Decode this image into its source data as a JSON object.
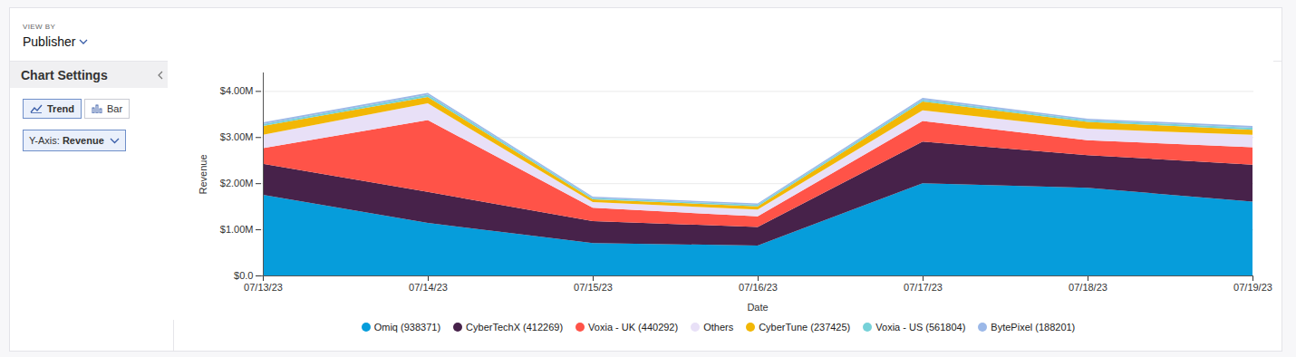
{
  "controls": {
    "view_by_label": "VIEW BY",
    "view_by": "Publisher",
    "panel_title": "Chart Settings",
    "chart_types": [
      "Trend",
      "Bar"
    ],
    "selected": "Trend",
    "y_axis_label": "Y-Axis:",
    "y_axis_value": "Revenue"
  },
  "chart_data": {
    "type": "area",
    "stacked": true,
    "grid": true,
    "legend": "bottom",
    "x_label": "Date",
    "y_label": "Revenue",
    "categories": [
      "07/13/23",
      "07/14/23",
      "07/15/23",
      "07/16/23",
      "07/17/23",
      "07/18/23",
      "07/19/23"
    ],
    "ylim": [
      0,
      4400000
    ],
    "yticks": [
      {
        "value": 0,
        "label": "$0.0"
      },
      {
        "value": 1000000,
        "label": "$1.00M"
      },
      {
        "value": 2000000,
        "label": "$2.00M"
      },
      {
        "value": 3000000,
        "label": "$3.00M"
      },
      {
        "value": 4000000,
        "label": "$4.00M"
      }
    ],
    "series": [
      {
        "name": "Omiq (938371)",
        "color": "#069ddb",
        "values": [
          1750000,
          1140000,
          700000,
          650000,
          2000000,
          1900000,
          1600000
        ]
      },
      {
        "name": "CyberTechX (412269)",
        "color": "#47224a",
        "values": [
          670000,
          670000,
          480000,
          400000,
          900000,
          710000,
          800000
        ]
      },
      {
        "name": "Voxia - UK (440292)",
        "color": "#ff5348",
        "values": [
          340000,
          1560000,
          290000,
          230000,
          450000,
          320000,
          380000
        ]
      },
      {
        "name": "Others",
        "color": "#e8e0f7",
        "values": [
          290000,
          360000,
          120000,
          150000,
          230000,
          250000,
          270000
        ]
      },
      {
        "name": "CyberTune (237425)",
        "color": "#f2b705",
        "values": [
          190000,
          140000,
          60000,
          70000,
          190000,
          150000,
          110000
        ]
      },
      {
        "name": "Voxia - US (561804)",
        "color": "#76d1d8",
        "values": [
          40000,
          50000,
          30000,
          30000,
          40000,
          40000,
          40000
        ]
      },
      {
        "name": "BytePixel (188201)",
        "color": "#9bb8e8",
        "values": [
          40000,
          40000,
          30000,
          30000,
          40000,
          30000,
          40000
        ]
      }
    ]
  }
}
